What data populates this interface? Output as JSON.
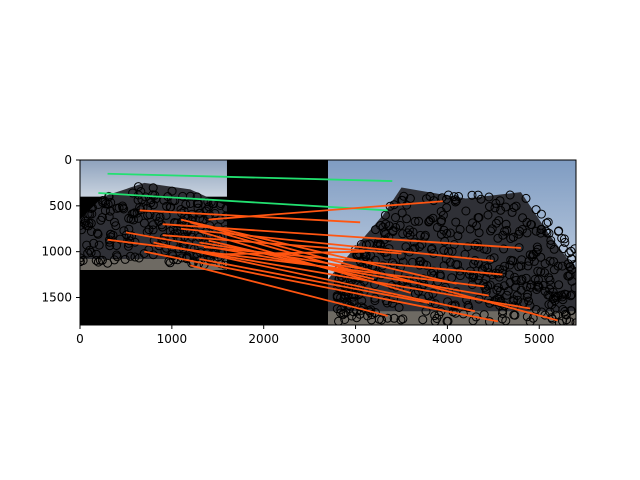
{
  "chart_data": {
    "type": "image-with-feature-matches",
    "xlim": [
      0,
      5400
    ],
    "ylim": [
      1800,
      0
    ],
    "x_ticks": [
      0,
      1000,
      2000,
      3000,
      4000,
      5000
    ],
    "y_ticks": [
      0,
      500,
      1000,
      1500
    ],
    "panels": [
      {
        "name": "left",
        "x_range": [
          0,
          1600
        ],
        "sky_until": 400,
        "ground_top": 1200,
        "wall_until_x": 1600
      },
      {
        "name": "right",
        "x_range": [
          2700,
          5400
        ],
        "sky_until": 1500
      }
    ],
    "colors": {
      "inlier": "#22e070",
      "outlier": "#ff5511",
      "keypoint": "#000000",
      "sky": "#b9c8dc",
      "building": "#2f3036",
      "ground": "#6e6a63",
      "background": "#000000"
    },
    "inlier_matches": [
      {
        "x1": 300,
        "y1": 150,
        "x2": 3400,
        "y2": 230
      },
      {
        "x1": 200,
        "y1": 360,
        "x2": 3350,
        "y2": 550
      }
    ],
    "outlier_matches": [
      {
        "x1": 650,
        "y1": 550,
        "x2": 3050,
        "y2": 680
      },
      {
        "x1": 3950,
        "y1": 450,
        "x2": 1400,
        "y2": 650
      },
      {
        "x1": 900,
        "y1": 700,
        "x2": 4800,
        "y2": 960
      },
      {
        "x1": 1100,
        "y1": 750,
        "x2": 4500,
        "y2": 1100
      },
      {
        "x1": 900,
        "y1": 820,
        "x2": 3500,
        "y2": 1020
      },
      {
        "x1": 300,
        "y1": 870,
        "x2": 4400,
        "y2": 1380
      },
      {
        "x1": 500,
        "y1": 790,
        "x2": 4450,
        "y2": 1480
      },
      {
        "x1": 1200,
        "y1": 680,
        "x2": 5200,
        "y2": 1750
      },
      {
        "x1": 800,
        "y1": 900,
        "x2": 4300,
        "y2": 1650
      },
      {
        "x1": 1000,
        "y1": 950,
        "x2": 4900,
        "y2": 1620
      },
      {
        "x1": 1300,
        "y1": 1080,
        "x2": 3800,
        "y2": 1560
      },
      {
        "x1": 1100,
        "y1": 650,
        "x2": 4100,
        "y2": 1350
      },
      {
        "x1": 700,
        "y1": 1000,
        "x2": 4550,
        "y2": 1760
      },
      {
        "x1": 1400,
        "y1": 880,
        "x2": 3200,
        "y2": 1300
      },
      {
        "x1": 1200,
        "y1": 1150,
        "x2": 3350,
        "y2": 1700
      },
      {
        "x1": 1550,
        "y1": 800,
        "x2": 2950,
        "y2": 1200
      },
      {
        "x1": 3150,
        "y1": 1200,
        "x2": 1300,
        "y2": 900
      },
      {
        "x1": 1300,
        "y1": 780,
        "x2": 3600,
        "y2": 1450
      },
      {
        "x1": 1350,
        "y1": 950,
        "x2": 4600,
        "y2": 1250
      },
      {
        "x1": 3100,
        "y1": 1000,
        "x2": 1450,
        "y2": 1030
      }
    ]
  }
}
